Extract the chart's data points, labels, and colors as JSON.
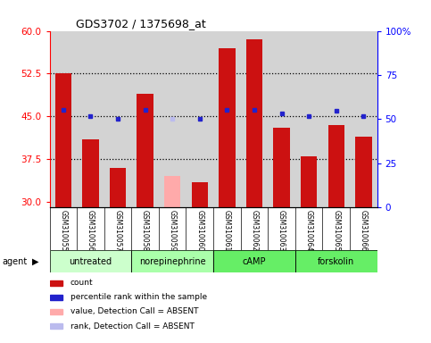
{
  "title": "GDS3702 / 1375698_at",
  "samples": [
    "GSM310055",
    "GSM310056",
    "GSM310057",
    "GSM310058",
    "GSM310059",
    "GSM310060",
    "GSM310061",
    "GSM310062",
    "GSM310063",
    "GSM310064",
    "GSM310065",
    "GSM310066"
  ],
  "bar_values": [
    52.5,
    41.0,
    36.0,
    49.0,
    null,
    33.5,
    57.0,
    58.5,
    43.0,
    38.0,
    43.5,
    41.5
  ],
  "absent_bar_values": [
    null,
    null,
    null,
    null,
    34.5,
    null,
    null,
    null,
    null,
    null,
    null,
    null
  ],
  "rank_values": [
    46.2,
    45.0,
    44.5,
    46.2,
    null,
    44.5,
    46.2,
    46.2,
    45.5,
    45.0,
    46.0,
    45.0
  ],
  "absent_rank_values": [
    null,
    null,
    null,
    null,
    44.5,
    null,
    null,
    null,
    null,
    null,
    null,
    null
  ],
  "ylim_left": [
    29,
    60
  ],
  "ylim_right": [
    0,
    100
  ],
  "yticks_left": [
    30,
    37.5,
    45,
    52.5,
    60
  ],
  "yticks_right": [
    0,
    25,
    50,
    75,
    100
  ],
  "hlines": [
    37.5,
    45.0,
    52.5
  ],
  "bar_color": "#cc1111",
  "absent_bar_color": "#ffaaaa",
  "rank_color": "#2222cc",
  "absent_rank_color": "#bbbbee",
  "plot_bg_color": "#d3d3d3",
  "sample_bg_color": "#d3d3d3",
  "agents": [
    {
      "label": "untreated",
      "start": 0,
      "end": 3,
      "color": "#ccffcc"
    },
    {
      "label": "norepinephrine",
      "start": 3,
      "end": 6,
      "color": "#aaffaa"
    },
    {
      "label": "cAMP",
      "start": 6,
      "end": 9,
      "color": "#66ee66"
    },
    {
      "label": "forskolin",
      "start": 9,
      "end": 12,
      "color": "#66ee66"
    }
  ],
  "legend_items": [
    {
      "label": "count",
      "color": "#cc1111"
    },
    {
      "label": "percentile rank within the sample",
      "color": "#2222cc"
    },
    {
      "label": "value, Detection Call = ABSENT",
      "color": "#ffaaaa"
    },
    {
      "label": "rank, Detection Call = ABSENT",
      "color": "#bbbbee"
    }
  ]
}
